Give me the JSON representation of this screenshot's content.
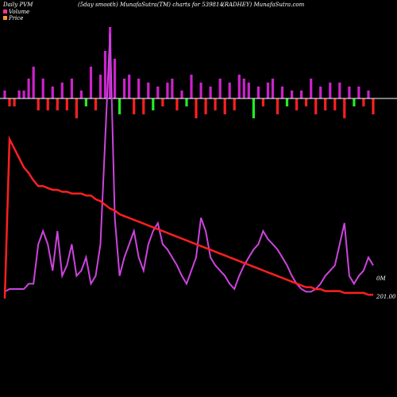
{
  "header": {
    "left": "Daily PVM",
    "center_left": "(5day smooth) MunafaSutra(TM) charts for 539814",
    "center_right": "(RADHEY) MunafaSutra.com"
  },
  "legend": {
    "volume_label": "Volume",
    "price_label": "Price",
    "volume_color": "#ff3399",
    "price_color": "#ff9933"
  },
  "chart_data": {
    "type": "line",
    "title": "",
    "colors": {
      "price_line": "#ff2020",
      "volume_line": "#cc44dd",
      "bar_up": "#cc22cc",
      "bar_down": "#ff2020",
      "bar_green": "#22ee22",
      "zero_line": "#ffffff"
    },
    "price_end_label": "201.00",
    "volume_end_label": "0M",
    "x": [
      1,
      2,
      3,
      4,
      5,
      6,
      7,
      8,
      9,
      10,
      11,
      12,
      13,
      14,
      15,
      16,
      17,
      18,
      19,
      20,
      21,
      22,
      23,
      24,
      25,
      26,
      27,
      28,
      29,
      30,
      31,
      32,
      33,
      34,
      35,
      36,
      37,
      38,
      39,
      40,
      41,
      42,
      43,
      44,
      45,
      46,
      47,
      48,
      49,
      50,
      51,
      52,
      53,
      54,
      55,
      56,
      57,
      58,
      59,
      60,
      61,
      62,
      63,
      64,
      65,
      66,
      67,
      68,
      69,
      70,
      71,
      72,
      73,
      74,
      75,
      76,
      77,
      78
    ],
    "series": [
      {
        "role": "price",
        "values": [
          0,
          85,
          80,
          75,
          70,
          67,
          63,
          60,
          60,
          59,
          58,
          58,
          57,
          57,
          56,
          56,
          56,
          55,
          55,
          53,
          52,
          50,
          48,
          47,
          45,
          44,
          43,
          42,
          41,
          40,
          39,
          38,
          37,
          36,
          35,
          34,
          33,
          32,
          31,
          30,
          29,
          28,
          27,
          26,
          25,
          24,
          23,
          22,
          21,
          20,
          19,
          18,
          17,
          16,
          15,
          14,
          13,
          12,
          11,
          10,
          9,
          8,
          7,
          6,
          6,
          5,
          5,
          4,
          4,
          4,
          4,
          3,
          3,
          3,
          3,
          3,
          2,
          2
        ]
      },
      {
        "role": "volume",
        "values": [
          2,
          3,
          3,
          3,
          3,
          5,
          5,
          20,
          25,
          20,
          10,
          25,
          8,
          12,
          20,
          8,
          10,
          15,
          5,
          8,
          20,
          60,
          100,
          30,
          8,
          15,
          20,
          25,
          15,
          10,
          20,
          25,
          28,
          20,
          18,
          15,
          12,
          8,
          5,
          10,
          15,
          30,
          25,
          15,
          12,
          10,
          8,
          5,
          3,
          8,
          12,
          15,
          18,
          20,
          25,
          22,
          20,
          18,
          15,
          12,
          8,
          5,
          3,
          2,
          2,
          3,
          5,
          8,
          10,
          12,
          20,
          28,
          8,
          5,
          8,
          10,
          15,
          12
        ]
      },
      {
        "role": "bars",
        "values": [
          2,
          -2,
          -2,
          2,
          2,
          5,
          8,
          -3,
          5,
          -3,
          3,
          -3,
          4,
          -3,
          5,
          -5,
          2,
          -2,
          8,
          -3,
          6,
          12,
          18,
          10,
          -4,
          5,
          6,
          -4,
          5,
          -4,
          4,
          -3,
          3,
          -2,
          4,
          5,
          -3,
          2,
          -2,
          6,
          -5,
          4,
          -4,
          3,
          -3,
          5,
          -4,
          4,
          -3,
          6,
          5,
          4,
          -5,
          3,
          -2,
          4,
          5,
          -4,
          3,
          -2,
          2,
          -3,
          2,
          -2,
          5,
          -4,
          3,
          -3,
          4,
          -3,
          4,
          -5,
          3,
          -2,
          3,
          -2,
          2,
          -4
        ]
      }
    ],
    "grid": false
  }
}
